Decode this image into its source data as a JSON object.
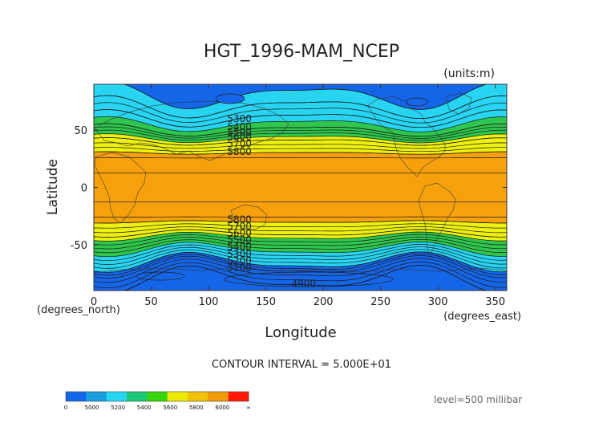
{
  "chart_data": {
    "type": "heatmap",
    "title": "HGT_1996-MAM_NCEP",
    "units_note": "(units:m)",
    "xlabel": "Longitude",
    "ylabel": "Latitude",
    "x_unit_note": "(degrees_east)",
    "y_unit_note": "(degrees_north)",
    "xlim": [
      0,
      360
    ],
    "ylim": [
      -90,
      90
    ],
    "x_ticks": [
      0,
      50,
      100,
      150,
      200,
      250,
      300,
      350
    ],
    "y_ticks": [
      -50,
      0,
      50
    ],
    "contour_interval_text": "CONTOUR INTERVAL = 5.000E+01",
    "level_text": "level=500 millibar",
    "colorbar": {
      "tick_labels": [
        "0",
        "5000",
        "5200",
        "5400",
        "5600",
        "5800",
        "6000",
        "∞"
      ],
      "colors": [
        "#1565e8",
        "#1a9ee0",
        "#27d4f2",
        "#1ec878",
        "#38d40c",
        "#ece808",
        "#f2c10a",
        "#f19a0c",
        "#ff1a0a"
      ]
    },
    "band_colors": {
      "lt5200": "#1565e8",
      "b5200_5400": "#27d4f2",
      "b5400_5600": "#2ec64c",
      "b5600_5800": "#eef00e",
      "b5800_6000": "#f6a10c"
    },
    "zonal_profile": {
      "description_lat": [
        90,
        80,
        70,
        60,
        50,
        45,
        40,
        35,
        30,
        25,
        0,
        -25,
        -30,
        -35,
        -40,
        -45,
        -50,
        -55,
        -60,
        -65,
        -70,
        -80,
        -90
      ],
      "values": [
        5180,
        5200,
        5250,
        5350,
        5450,
        5560,
        5650,
        5720,
        5800,
        5860,
        5880,
        5860,
        5800,
        5730,
        5650,
        5560,
        5470,
        5380,
        5290,
        5200,
        5080,
        4950,
        4900
      ]
    },
    "contour_labels": [
      {
        "text": "5300",
        "lon": 127,
        "lat": 60
      },
      {
        "text": "5400",
        "lon": 127,
        "lat": 53
      },
      {
        "text": "5500",
        "lon": 127,
        "lat": 48
      },
      {
        "text": "5600",
        "lon": 127,
        "lat": 44
      },
      {
        "text": "5700",
        "lon": 127,
        "lat": 38
      },
      {
        "text": "5800",
        "lon": 127,
        "lat": 31
      },
      {
        "text": "5800",
        "lon": 127,
        "lat": -28
      },
      {
        "text": "5700",
        "lon": 127,
        "lat": -34
      },
      {
        "text": "5600",
        "lon": 127,
        "lat": -40
      },
      {
        "text": "5500",
        "lon": 127,
        "lat": -46
      },
      {
        "text": "5400",
        "lon": 127,
        "lat": -52
      },
      {
        "text": "5300",
        "lon": 127,
        "lat": -58
      },
      {
        "text": "5200",
        "lon": 127,
        "lat": -64
      },
      {
        "text": "5100",
        "lon": 127,
        "lat": -70
      },
      {
        "text": "4900",
        "lon": 183,
        "lat": -84
      }
    ]
  }
}
